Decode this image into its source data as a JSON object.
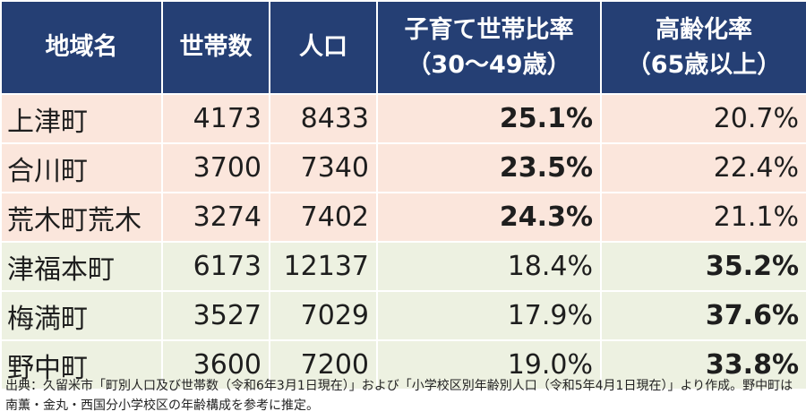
{
  "headers": {
    "area": "地域名",
    "households": "世帯数",
    "population": "人口",
    "child_ratio_line1": "子育て世帯比率",
    "child_ratio_line2": "（30〜49歳）",
    "elderly_ratio_line1": "高齢化率",
    "elderly_ratio_line2": "（65歳以上）"
  },
  "rows": [
    {
      "area": "上津町",
      "households": "4173",
      "population": "8433",
      "child_ratio": "25.1%",
      "elderly_ratio": "20.7%",
      "highlight": "child",
      "group": "pink"
    },
    {
      "area": "合川町",
      "households": "3700",
      "population": "7340",
      "child_ratio": "23.5%",
      "elderly_ratio": "22.4%",
      "highlight": "child",
      "group": "pink"
    },
    {
      "area": "荒木町荒木",
      "households": "3274",
      "population": "7402",
      "child_ratio": "24.3%",
      "elderly_ratio": "21.1%",
      "highlight": "child",
      "group": "pink"
    },
    {
      "area": "津福本町",
      "households": "6173",
      "population": "12137",
      "child_ratio": "18.4%",
      "elderly_ratio": "35.2%",
      "highlight": "elderly",
      "group": "green"
    },
    {
      "area": "梅満町",
      "households": "3527",
      "population": "7029",
      "child_ratio": "17.9%",
      "elderly_ratio": "37.6%",
      "highlight": "elderly",
      "group": "green"
    },
    {
      "area": "野中町",
      "households": "3600",
      "population": "7200",
      "child_ratio": "19.0%",
      "elderly_ratio": "33.8%",
      "highlight": "elderly",
      "group": "green"
    }
  ],
  "source_note": "出典：久留米市「町別人口及び世帯数（令和6年3月1日現在）」および「小学校区別年齢別人口（令和5年4月1日現在）」より作成。野中町は南薫・金丸・西国分小学校区の年齢構成を参考に推定。",
  "colors": {
    "header_bg": "#253f74",
    "pink_row": "#fbe6dc",
    "green_row": "#edf1e1"
  }
}
